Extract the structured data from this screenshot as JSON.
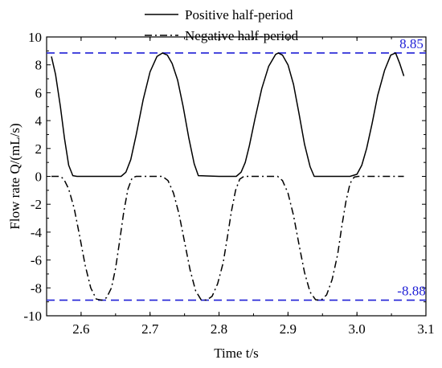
{
  "chart_data": {
    "type": "line",
    "xlabel": "Time t/s",
    "ylabel": "Flow rate Q/(mL/s)",
    "xlim": [
      2.55,
      3.1
    ],
    "ylim": [
      -10,
      10
    ],
    "xticks": [
      "2.6",
      "2.7",
      "2.8",
      "2.9",
      "3.0",
      "3.1"
    ],
    "yticks": [
      "10",
      "8",
      "6",
      "4",
      "2",
      "0",
      "-2",
      "-4",
      "-6",
      "-8",
      "-10"
    ],
    "legend_position": "top-center",
    "grid": false,
    "series": [
      {
        "name": "Positive half-period",
        "style": "solid",
        "color": "#000000",
        "x": [
          2.557,
          2.563,
          2.57,
          2.576,
          2.582,
          2.588,
          2.594,
          2.6,
          2.62,
          2.64,
          2.658,
          2.665,
          2.672,
          2.68,
          2.69,
          2.7,
          2.71,
          2.718,
          2.725,
          2.732,
          2.74,
          2.748,
          2.756,
          2.764,
          2.77,
          2.8,
          2.825,
          2.832,
          2.838,
          2.844,
          2.852,
          2.862,
          2.872,
          2.882,
          2.886,
          2.892,
          2.9,
          2.908,
          2.916,
          2.924,
          2.932,
          2.938,
          2.96,
          2.99,
          3.0,
          3.007,
          3.014,
          3.022,
          3.03,
          3.04,
          3.049,
          3.056,
          3.062,
          3.068
        ],
        "y": [
          8.6,
          7.3,
          5.0,
          2.7,
          0.8,
          0.05,
          0.0,
          0.0,
          0.0,
          0.0,
          0.0,
          0.3,
          1.2,
          3.0,
          5.5,
          7.5,
          8.6,
          8.85,
          8.7,
          8.1,
          6.9,
          5.0,
          2.8,
          0.9,
          0.05,
          0.0,
          0.0,
          0.3,
          1.0,
          2.2,
          4.1,
          6.3,
          7.9,
          8.75,
          8.85,
          8.7,
          8.0,
          6.6,
          4.5,
          2.3,
          0.7,
          0.0,
          0.0,
          0.0,
          0.15,
          0.8,
          2.0,
          3.8,
          5.8,
          7.6,
          8.7,
          8.85,
          8.1,
          7.2
        ]
      },
      {
        "name": "Negative half-period",
        "style": "dashdot",
        "color": "#000000",
        "x": [
          2.557,
          2.57,
          2.575,
          2.582,
          2.59,
          2.598,
          2.606,
          2.614,
          2.622,
          2.63,
          2.637,
          2.644,
          2.65,
          2.656,
          2.662,
          2.668,
          2.674,
          2.68,
          2.7,
          2.718,
          2.726,
          2.734,
          2.742,
          2.75,
          2.758,
          2.766,
          2.774,
          2.782,
          2.79,
          2.798,
          2.806,
          2.812,
          2.818,
          2.824,
          2.83,
          2.836,
          2.86,
          2.885,
          2.892,
          2.9,
          2.908,
          2.916,
          2.924,
          2.932,
          2.94,
          2.948,
          2.956,
          2.964,
          2.972,
          2.978,
          2.984,
          2.99,
          2.996,
          3.002,
          3.02,
          3.04,
          3.06,
          3.068
        ],
        "y": [
          0.0,
          0.0,
          -0.2,
          -0.9,
          -2.3,
          -4.3,
          -6.4,
          -8.0,
          -8.8,
          -8.88,
          -8.7,
          -8.0,
          -6.6,
          -4.6,
          -2.5,
          -0.9,
          -0.1,
          0.0,
          0.0,
          0.0,
          -0.3,
          -1.2,
          -2.7,
          -4.7,
          -6.7,
          -8.2,
          -8.85,
          -8.88,
          -8.6,
          -7.7,
          -6.2,
          -4.4,
          -2.5,
          -1.0,
          -0.2,
          0.0,
          0.0,
          0.0,
          -0.3,
          -1.2,
          -2.8,
          -4.9,
          -6.9,
          -8.3,
          -8.85,
          -8.88,
          -8.5,
          -7.4,
          -5.6,
          -3.6,
          -1.8,
          -0.5,
          -0.05,
          0.0,
          0.0,
          0.0,
          0.0,
          0.0
        ]
      }
    ],
    "reference_lines": [
      {
        "value": 8.85,
        "label": "8.85",
        "style": "dashed",
        "color": "#1f1fd6"
      },
      {
        "value": -8.88,
        "label": "-8.88",
        "style": "dashed",
        "color": "#1f1fd6"
      }
    ]
  }
}
